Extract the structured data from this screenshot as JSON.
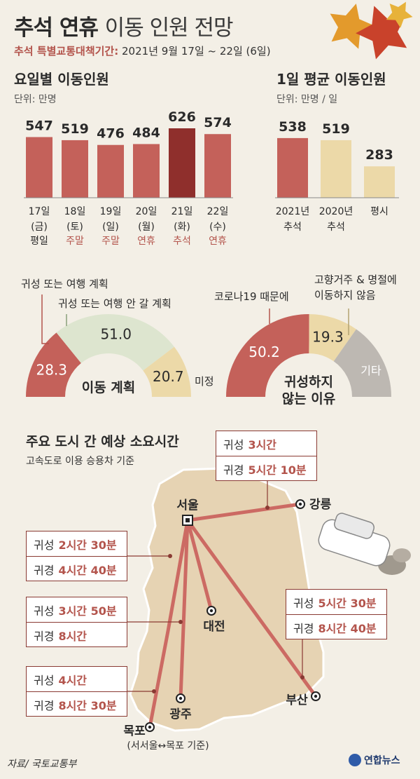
{
  "title": {
    "bold": "추석 연휴",
    "light": "이동 인원 전망"
  },
  "period": {
    "label": "추석 특별교통대책기간:",
    "value": "2021년 9월 17일 ~ 22일 (6일)"
  },
  "colors": {
    "red": "#c4615a",
    "dark_red": "#8f2f2c",
    "tan": "#ecd9a8",
    "green": "#dde5cf",
    "gray": "#bdb8b2",
    "map": "#e6d3b3",
    "route": "#cc6a63"
  },
  "chart_data": [
    {
      "type": "bar",
      "title": "요일별 이동인원",
      "unit": "단위: 만명",
      "categories": [
        "17일\n(금)",
        "18일\n(토)",
        "19일\n(일)",
        "20일\n(월)",
        "21일\n(화)",
        "22일\n(수)"
      ],
      "day_types": [
        "평일",
        "주말",
        "주말",
        "연휴",
        "추석",
        "연휴"
      ],
      "values": [
        547,
        519,
        476,
        484,
        626,
        574
      ],
      "highlight_index": 4
    },
    {
      "type": "bar",
      "title": "1일 평균 이동인원",
      "unit": "단위: 만명 / 일",
      "categories": [
        "2021년\n추석",
        "2020년\n추석",
        "평시"
      ],
      "values": [
        538,
        519,
        283
      ]
    },
    {
      "type": "pie",
      "title": "이동 계획",
      "labels": [
        "귀성 또는 여행 계획",
        "귀성 또는 여행 안 갈 계획",
        "미정"
      ],
      "values": [
        28.3,
        51.0,
        20.7
      ]
    },
    {
      "type": "pie",
      "title": "귀성하지\n않는 이유",
      "labels": [
        "코로나19 때문에",
        "고향거주 & 명절에\n이동하지 않음",
        "기타"
      ],
      "values": [
        50.2,
        19.3,
        30.5
      ],
      "printed_values": [
        "50.2",
        "19.3",
        ""
      ]
    }
  ],
  "map": {
    "title": "주요 도시 간 예상 소요시간",
    "subtitle": "고속도로 이용 승용차 기준",
    "cities": {
      "seoul": "서울",
      "gangneung": "강릉",
      "daejeon": "대전",
      "gwangju": "광주",
      "busan": "부산",
      "mokpo": "목포"
    },
    "mokpo_note": "(서서울↔목포 기준)",
    "routes": [
      {
        "to": "강릉",
        "out_label": "귀성",
        "out": "3시간",
        "back_label": "귀경",
        "back": "5시간 10분"
      },
      {
        "to": "대전",
        "out_label": "귀성",
        "out": "2시간 30분",
        "back_label": "귀경",
        "back": "4시간 40분"
      },
      {
        "to": "광주",
        "out_label": "귀성",
        "out": "3시간 50분",
        "back_label": "귀경",
        "back": "8시간"
      },
      {
        "to": "목포",
        "out_label": "귀성",
        "out": "4시간",
        "back_label": "귀경",
        "back": "8시간 30분"
      },
      {
        "to": "부산",
        "out_label": "귀성",
        "out": "5시간 30분",
        "back_label": "귀경",
        "back": "8시간 40분"
      }
    ]
  },
  "source": "자료/ 국토교통부",
  "logo": "연합뉴스"
}
